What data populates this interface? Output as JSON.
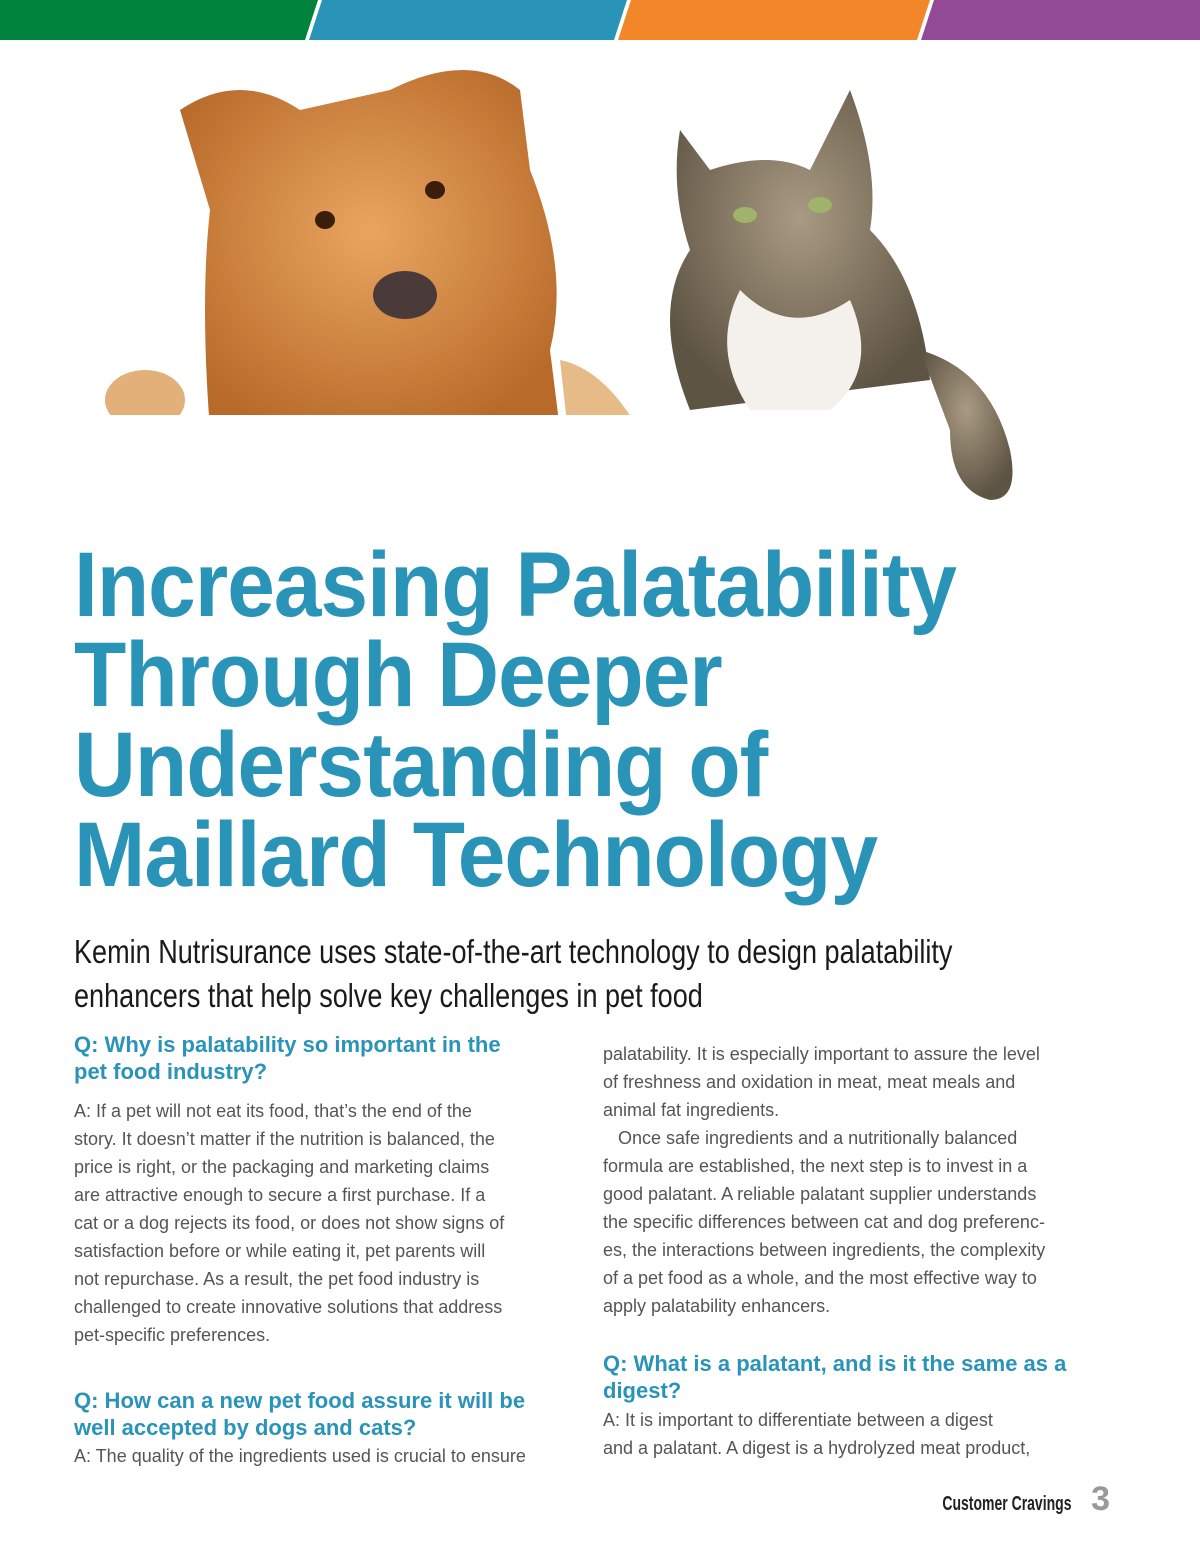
{
  "header_bar": {
    "colors": [
      "#00843d",
      "#2a93b8",
      "#f28629",
      "#924a97"
    ]
  },
  "photo": {
    "description_icon": "dog-and-cat-photo"
  },
  "title": {
    "lines": [
      "Increasing Palatability",
      "Through Deeper",
      "Understanding of",
      "Maillard Technology"
    ]
  },
  "subtitle": {
    "lines": [
      "Kemin Nutrisurance uses state-of-the-art technology to design palatability",
      "enhancers that help solve key challenges in pet food"
    ]
  },
  "left_column": {
    "q1": [
      "Q: Why is palatability so important in the",
      "pet food industry?"
    ],
    "a1": [
      "A: If a pet will not eat its food, that’s the end of the",
      "story. It doesn’t matter if the nutrition is balanced, the",
      "price is right, or the packaging and marketing claims",
      "are attractive enough to secure a first purchase. If a",
      "cat or a dog rejects its food, or does not show signs of",
      "satisfaction before or while eating it, pet parents will",
      "not repurchase. As a result, the pet food industry is",
      "challenged to create innovative solutions that address",
      "pet-specific preferences."
    ],
    "q2": [
      "Q: How can a new pet food assure it will be",
      "well accepted by dogs and cats?"
    ],
    "a2": [
      "A: The quality of the ingredients used is crucial to ensure"
    ]
  },
  "right_column": {
    "a2_cont": [
      "palatability. It is especially important to assure the level",
      "of freshness and oxidation in meat, meat meals and",
      "animal fat ingredients.",
      "   Once safe ingredients and a nutritionally balanced",
      "formula are established, the next step is to invest in a",
      "good palatant. A reliable palatant supplier understands",
      "the specific differences between cat and dog preferenc-",
      "es, the interactions between ingredients, the complexity",
      "of a pet food as a whole, and the most effective way to",
      "apply palatability enhancers."
    ],
    "q3": [
      "Q: What is a palatant, and is it the same as a",
      "digest?"
    ],
    "a3": [
      "A: It is important to differentiate between a digest",
      "and a palatant. A digest is a hydrolyzed meat product,"
    ]
  },
  "footer": {
    "magazine": "Customer Cravings",
    "page_number": "3"
  },
  "colors": {
    "accent": "#2a93b8"
  }
}
